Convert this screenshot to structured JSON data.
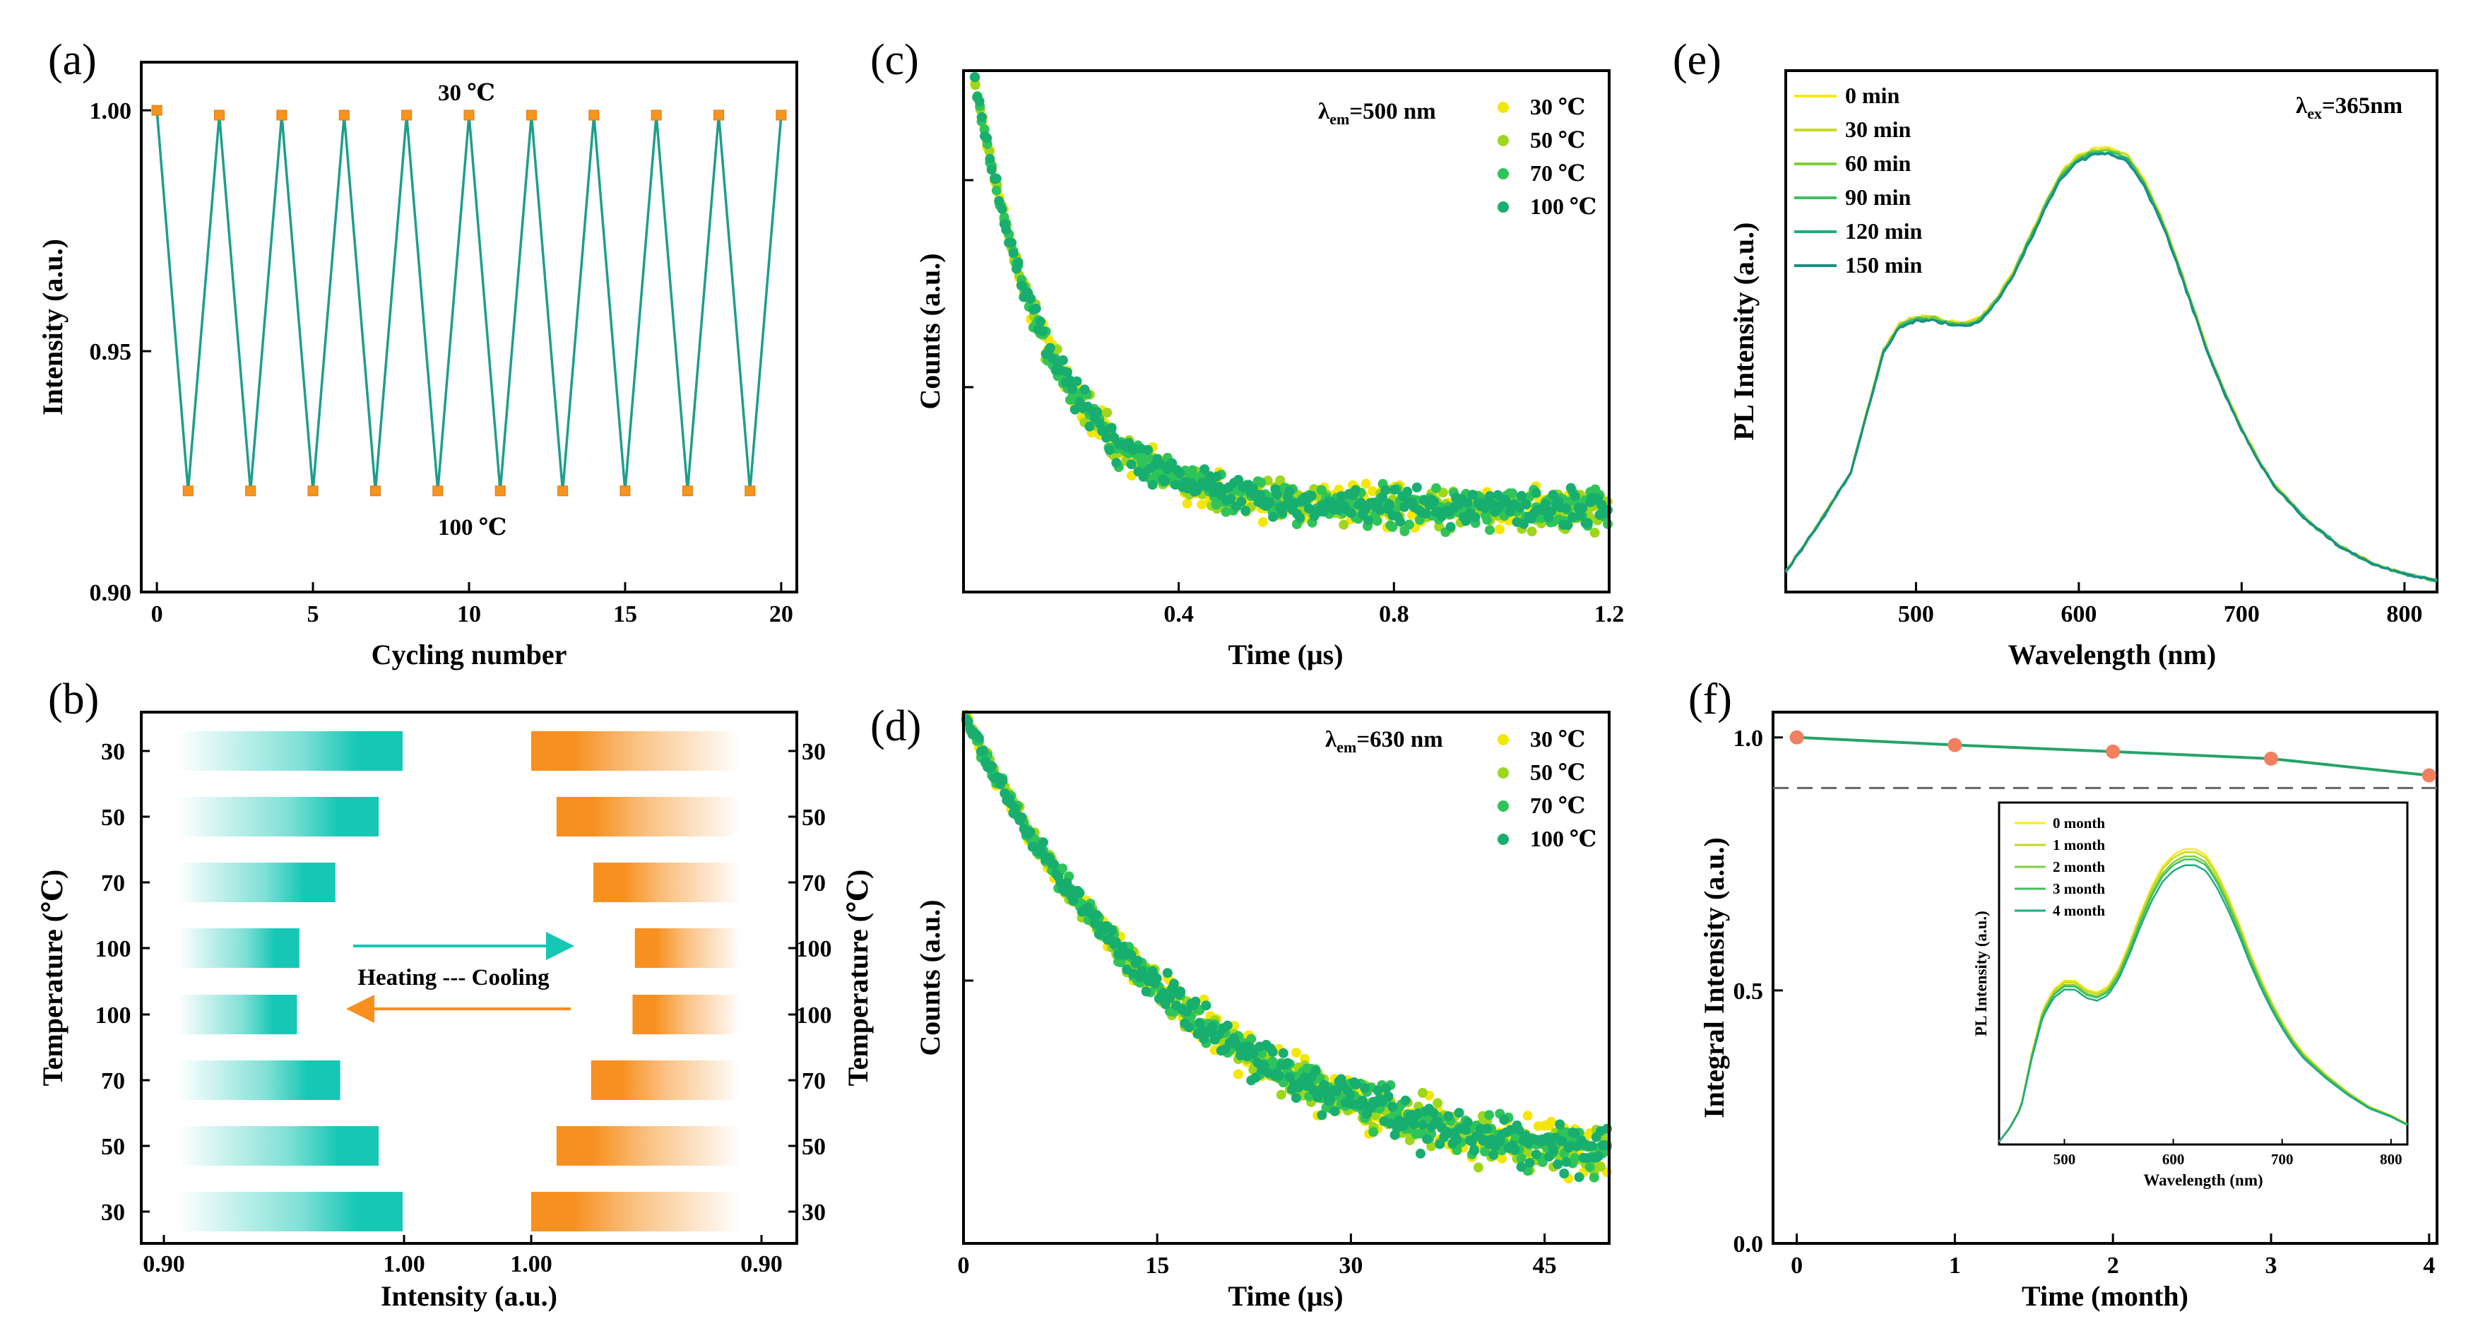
{
  "colors": {
    "cycle_line": "#1e9e8c",
    "cycle_marker": "#f7941d",
    "teal": "#16c7b5",
    "orange": "#f7901e",
    "t30": "#f5e60a",
    "t50": "#9ed61c",
    "t70": "#2fc45a",
    "t100": "#17ae6f",
    "time": [
      "#f8e81c",
      "#c3da26",
      "#7fcf3b",
      "#3fbf62",
      "#1fab7d",
      "#1a8f84"
    ],
    "stab_line": "#27a36a",
    "stab_marker": "#f08060"
  },
  "panels": {
    "a": {
      "label": "(a)",
      "annotation_top": "30 ℃",
      "annotation_bottom": "100 ℃"
    },
    "b": {
      "label": "(b)",
      "heating_cooling": "Heating --- Cooling",
      "temps": [
        "30",
        "50",
        "70",
        "100",
        "100",
        "70",
        "50",
        "30"
      ],
      "xticks_left": [
        "0.90",
        "1.00"
      ],
      "xticks_right": [
        "1.00",
        "0.90"
      ]
    },
    "c": {
      "label": "(c)",
      "lambda_main": "λ",
      "lambda_sub": "em",
      "lambda_value": "=500 nm"
    },
    "d": {
      "label": "(d)",
      "lambda_main": "λ",
      "lambda_sub": "em",
      "lambda_value": "=630 nm"
    },
    "e": {
      "label": "(e)",
      "lambda_main": "λ",
      "lambda_sub": "ex",
      "lambda_value": "=365nm"
    },
    "f": {
      "label": "(f)"
    }
  },
  "chart_data": [
    {
      "panel": "a",
      "type": "line",
      "xlabel": "Cycling number",
      "ylabel": "Intensity (a.u.)",
      "xlim": [
        -0.5,
        20.5
      ],
      "ylim": [
        0.9,
        1.01
      ],
      "xticks": [
        0,
        5,
        10,
        15,
        20
      ],
      "yticks": [
        0.9,
        0.95,
        1.0
      ],
      "ytick_labels": [
        "0.90",
        "0.95",
        "1.00"
      ],
      "x": [
        0,
        1,
        2,
        3,
        4,
        5,
        6,
        7,
        8,
        9,
        10,
        11,
        12,
        13,
        14,
        15,
        16,
        17,
        18,
        19,
        20
      ],
      "y": [
        1.0,
        0.921,
        0.999,
        0.921,
        0.999,
        0.921,
        0.999,
        0.921,
        0.999,
        0.921,
        0.999,
        0.921,
        0.999,
        0.921,
        0.999,
        0.921,
        0.999,
        0.921,
        0.999,
        0.921,
        0.999
      ]
    },
    {
      "panel": "b",
      "type": "bar",
      "xlabel": "Intensity (a.u.)",
      "ylabel_left": "Temperature (℃)",
      "ylabel_right": "Temperature (℃)",
      "categories": [
        "30",
        "50",
        "70",
        "100",
        "100",
        "70",
        "50",
        "30"
      ],
      "series": [
        {
          "name": "Heating",
          "values": [
            1.0,
            0.99,
            0.972,
            0.957,
            0.956,
            0.974,
            0.99,
            1.0
          ]
        },
        {
          "name": "Cooling",
          "values": [
            1.0,
            0.989,
            0.973,
            0.955,
            0.956,
            0.974,
            0.989,
            1.0
          ]
        }
      ]
    },
    {
      "panel": "c",
      "type": "scatter",
      "xlabel": "Time (μs)",
      "ylabel": "Counts (a.u.)",
      "xlim": [
        0,
        1.2
      ],
      "xticks": [
        0.4,
        0.8,
        1.2
      ],
      "xtick_labels": [
        "0.4",
        "0.8",
        "1.2"
      ],
      "series": [
        {
          "name": "30 ℃"
        },
        {
          "name": "50 ℃"
        },
        {
          "name": "70 ℃"
        },
        {
          "name": "100 ℃"
        }
      ],
      "decay_tau": 0.14
    },
    {
      "panel": "d",
      "type": "scatter",
      "xlabel": "Time (μs)",
      "ylabel": "Counts (a.u.)",
      "xlim": [
        0,
        50
      ],
      "xticks": [
        0,
        15,
        30,
        45
      ],
      "xtick_labels": [
        "0",
        "15",
        "30",
        "45"
      ],
      "series": [
        {
          "name": "30 ℃"
        },
        {
          "name": "50 ℃"
        },
        {
          "name": "70 ℃"
        },
        {
          "name": "100 ℃"
        }
      ],
      "decay_tau": 17
    },
    {
      "panel": "e",
      "type": "line",
      "xlabel": "Wavelength (nm)",
      "ylabel": "PL Intensity (a.u.)",
      "xlim": [
        420,
        820
      ],
      "xticks": [
        500,
        600,
        700,
        800
      ],
      "series": [
        {
          "name": "0 min"
        },
        {
          "name": "30 min"
        },
        {
          "name": "60 min"
        },
        {
          "name": "90 min"
        },
        {
          "name": "120 min"
        },
        {
          "name": "150 min"
        }
      ],
      "x": [
        420,
        440,
        460,
        470,
        480,
        490,
        500,
        510,
        520,
        530,
        540,
        550,
        560,
        570,
        580,
        590,
        600,
        610,
        620,
        630,
        640,
        650,
        660,
        670,
        680,
        690,
        700,
        710,
        720,
        740,
        760,
        780,
        800,
        820
      ],
      "y": [
        0.03,
        0.14,
        0.26,
        0.4,
        0.54,
        0.6,
        0.615,
        0.615,
        0.605,
        0.6,
        0.615,
        0.66,
        0.72,
        0.8,
        0.88,
        0.95,
        0.985,
        1.0,
        1.0,
        0.985,
        0.93,
        0.85,
        0.75,
        0.64,
        0.53,
        0.44,
        0.36,
        0.29,
        0.23,
        0.15,
        0.09,
        0.05,
        0.025,
        0.01
      ]
    },
    {
      "panel": "f",
      "type": "line",
      "xlabel": "Time (month)",
      "ylabel": "Integral Intensity (a.u.)",
      "xlim": [
        -0.15,
        4.05
      ],
      "ylim": [
        0.0,
        1.05
      ],
      "xticks": [
        0,
        1,
        2,
        3,
        4
      ],
      "yticks": [
        0.0,
        0.5,
        1.0
      ],
      "ytick_labels": [
        "0.0",
        "0.5",
        "1.0"
      ],
      "x": [
        0,
        1,
        2,
        3,
        4
      ],
      "y": [
        1.0,
        0.985,
        0.972,
        0.958,
        0.925
      ],
      "reference_line": 0.9,
      "inset": {
        "xlabel": "Wavelength (nm)",
        "ylabel": "PL Intensity (a.u.)",
        "xlim": [
          440,
          815
        ],
        "xticks": [
          500,
          600,
          700,
          800
        ],
        "series": [
          {
            "name": "0 month",
            "scale": 1.0
          },
          {
            "name": "1 month",
            "scale": 0.99
          },
          {
            "name": "2 month",
            "scale": 0.975
          },
          {
            "name": "3 month",
            "scale": 0.965
          },
          {
            "name": "4 month",
            "scale": 0.945
          }
        ],
        "x": [
          440,
          450,
          460,
          470,
          480,
          490,
          500,
          510,
          520,
          530,
          540,
          550,
          560,
          570,
          580,
          590,
          600,
          610,
          620,
          630,
          640,
          650,
          660,
          670,
          680,
          690,
          700,
          710,
          720,
          740,
          760,
          780,
          800,
          815
        ],
        "y": [
          0.0,
          0.05,
          0.12,
          0.3,
          0.45,
          0.52,
          0.55,
          0.55,
          0.52,
          0.51,
          0.53,
          0.59,
          0.68,
          0.78,
          0.87,
          0.94,
          0.98,
          1.0,
          1.0,
          0.98,
          0.92,
          0.84,
          0.75,
          0.65,
          0.56,
          0.48,
          0.41,
          0.35,
          0.3,
          0.23,
          0.17,
          0.12,
          0.09,
          0.06
        ]
      }
    }
  ]
}
